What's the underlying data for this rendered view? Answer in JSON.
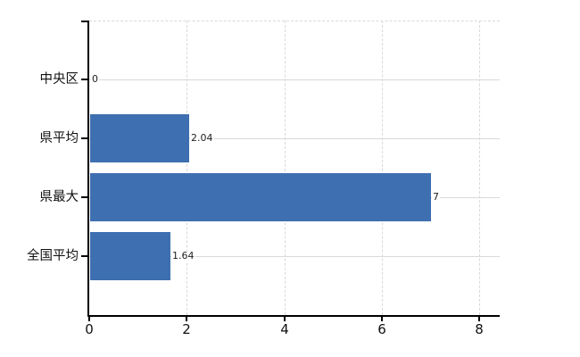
{
  "chart_data": {
    "type": "bar",
    "orientation": "horizontal",
    "title": "",
    "categories": [
      "中央区",
      "県平均",
      "県最大",
      "全国平均"
    ],
    "values": [
      0,
      2.04,
      7,
      1.64
    ],
    "value_labels": [
      "0",
      "2.04",
      "7",
      "1.64"
    ],
    "xticks": [
      0,
      2,
      4,
      6,
      8
    ],
    "xtick_labels": [
      "0",
      "2",
      "4",
      "6",
      "8"
    ],
    "xlim": [
      0,
      8.42
    ],
    "xlabel": "",
    "ylabel": "",
    "grid": true,
    "legend": false,
    "colors": {
      "bar": "#3e6fb0",
      "gridline": "#d9d9d9",
      "axis": "#000000",
      "category_text": "#111111",
      "value_text": "#222222",
      "tick_text": "#111111",
      "background": "#ffffff"
    }
  }
}
